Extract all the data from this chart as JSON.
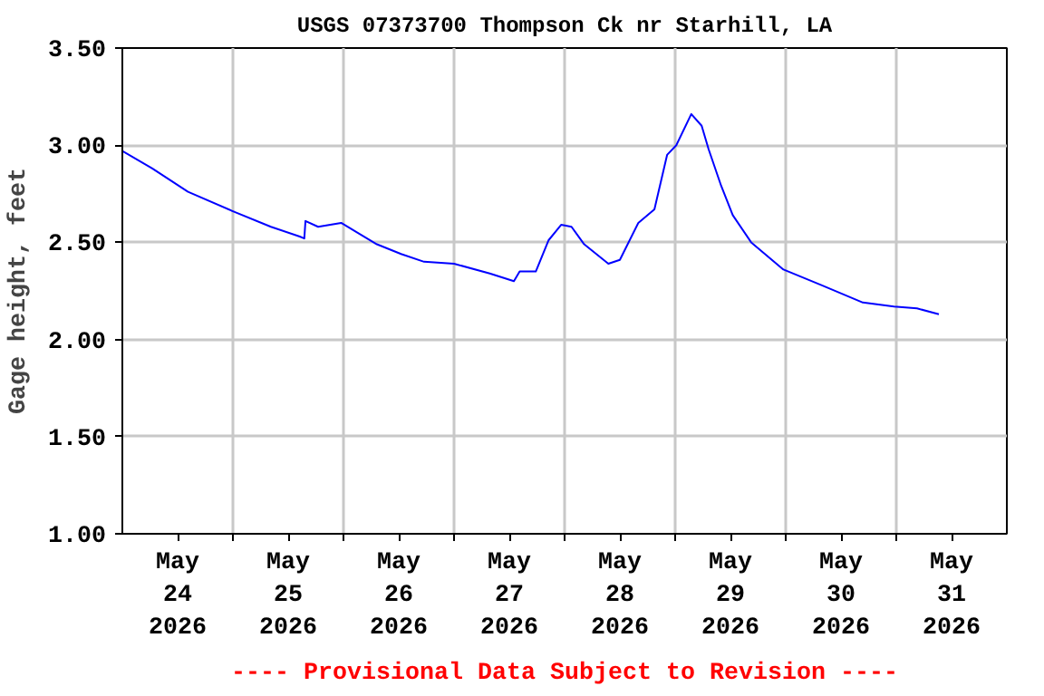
{
  "chart_data": {
    "type": "line",
    "title": "USGS 07373700 Thompson Ck nr Starhill, LA",
    "ylabel": "Gage height, feet",
    "annotations": [
      "---- Provisional Data Subject to Revision ----"
    ],
    "x": [
      "2026-05-24T00:00",
      "2026-05-24T06:30",
      "2026-05-24T14:15",
      "2026-05-25T00:00",
      "2026-05-25T08:15",
      "2026-05-25T14:30",
      "2026-05-25T15:30",
      "2026-05-25T15:45",
      "2026-05-25T18:30",
      "2026-05-25T23:30",
      "2026-05-26T07:15",
      "2026-05-26T12:30",
      "2026-05-26T17:30",
      "2026-05-27T00:00",
      "2026-05-27T07:45",
      "2026-05-27T13:00",
      "2026-05-27T14:15",
      "2026-05-27T17:45",
      "2026-05-27T20:30",
      "2026-05-27T23:15",
      "2026-05-28T01:30",
      "2026-05-28T04:15",
      "2026-05-28T09:30",
      "2026-05-28T12:00",
      "2026-05-28T16:00",
      "2026-05-28T19:30",
      "2026-05-28T22:15",
      "2026-05-29T00:15",
      "2026-05-29T03:30",
      "2026-05-29T05:45",
      "2026-05-29T07:15",
      "2026-05-29T10:00",
      "2026-05-29T12:30",
      "2026-05-29T16:30",
      "2026-05-29T23:30",
      "2026-05-30T07:45",
      "2026-05-30T16:45",
      "2026-05-30T23:30",
      "2026-05-31T04:30",
      "2026-05-31T09:15"
    ],
    "series": [
      {
        "color": "#0000ff",
        "values": [
          2.97,
          2.88,
          2.76,
          2.66,
          2.58,
          2.53,
          2.52,
          2.61,
          2.58,
          2.6,
          2.49,
          2.44,
          2.4,
          2.39,
          2.34,
          2.3,
          2.35,
          2.35,
          2.51,
          2.59,
          2.58,
          2.49,
          2.39,
          2.41,
          2.6,
          2.67,
          2.95,
          3.0,
          3.16,
          3.1,
          2.98,
          2.79,
          2.64,
          2.5,
          2.36,
          2.28,
          2.19,
          2.17,
          2.16,
          2.13
        ]
      }
    ],
    "xlim": [
      "2026-05-24T00:00",
      "2026-06-01T00:00"
    ],
    "xticks": [
      {
        "value": "2026-05-24T12:00",
        "label": "May\n24\n2026"
      },
      {
        "value": "2026-05-25T00:00",
        "label": null
      },
      {
        "value": "2026-05-25T12:00",
        "label": "May\n25\n2026"
      },
      {
        "value": "2026-05-26T00:00",
        "label": null
      },
      {
        "value": "2026-05-26T12:00",
        "label": "May\n26\n2026"
      },
      {
        "value": "2026-05-27T00:00",
        "label": null
      },
      {
        "value": "2026-05-27T12:00",
        "label": "May\n27\n2026"
      },
      {
        "value": "2026-05-28T00:00",
        "label": null
      },
      {
        "value": "2026-05-28T12:00",
        "label": "May\n28\n2026"
      },
      {
        "value": "2026-05-29T00:00",
        "label": null
      },
      {
        "value": "2026-05-29T12:00",
        "label": "May\n29\n2026"
      },
      {
        "value": "2026-05-30T00:00",
        "label": null
      },
      {
        "value": "2026-05-30T12:00",
        "label": "May\n30\n2026"
      },
      {
        "value": "2026-05-31T00:00",
        "label": null
      },
      {
        "value": "2026-05-31T12:00",
        "label": "May\n31\n2026"
      }
    ],
    "ylim": [
      1.0,
      3.5
    ],
    "yticks": [
      {
        "value": 1.0,
        "label": "1.00"
      },
      {
        "value": 1.5,
        "label": "1.50"
      },
      {
        "value": 2.0,
        "label": "2.00"
      },
      {
        "value": 2.5,
        "label": "2.50"
      },
      {
        "value": 3.0,
        "label": "3.00"
      },
      {
        "value": 3.5,
        "label": "3.50"
      }
    ],
    "grid": true,
    "line_style": "solid"
  }
}
